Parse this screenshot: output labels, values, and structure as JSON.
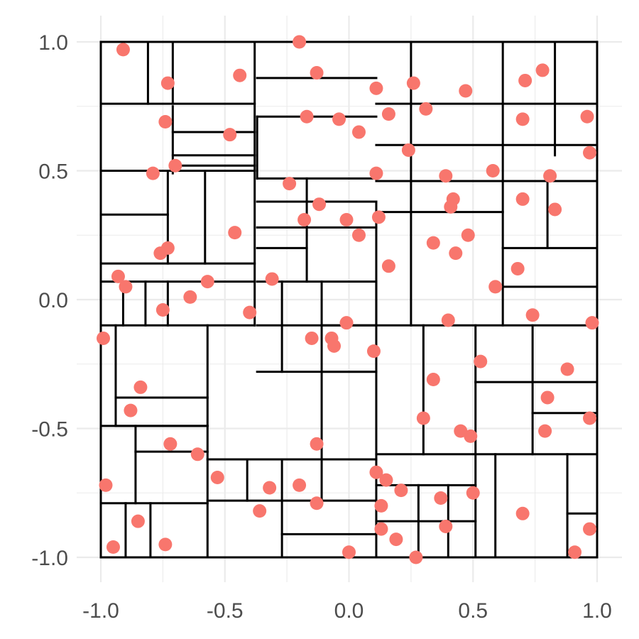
{
  "chart_data": {
    "type": "scatter",
    "title": "",
    "xlabel": "",
    "ylabel": "",
    "xlim": [
      -1.0,
      1.0
    ],
    "ylim": [
      -1.0,
      1.0
    ],
    "x_ticks": [
      "-1.0",
      "-0.5",
      "0.0",
      "0.5",
      "1.0"
    ],
    "y_ticks": [
      "-1.0",
      "-0.5",
      "0.0",
      "0.5",
      "1.0"
    ],
    "grid": true,
    "legend": "none",
    "point_color": "#F8766D",
    "line_color": "#000000",
    "points": [
      [
        -0.91,
        0.97
      ],
      [
        -0.2,
        1.0
      ],
      [
        -0.13,
        0.88
      ],
      [
        -0.73,
        0.84
      ],
      [
        -0.44,
        0.87
      ],
      [
        0.11,
        0.82
      ],
      [
        0.26,
        0.84
      ],
      [
        0.47,
        0.81
      ],
      [
        0.71,
        0.85
      ],
      [
        0.78,
        0.89
      ],
      [
        -0.74,
        0.69
      ],
      [
        -0.17,
        0.71
      ],
      [
        -0.04,
        0.7
      ],
      [
        0.16,
        0.72
      ],
      [
        0.31,
        0.74
      ],
      [
        0.7,
        0.7
      ],
      [
        0.96,
        0.71
      ],
      [
        -0.48,
        0.64
      ],
      [
        0.04,
        0.65
      ],
      [
        0.24,
        0.58
      ],
      [
        0.97,
        0.57
      ],
      [
        -0.7,
        0.52
      ],
      [
        -0.79,
        0.49
      ],
      [
        0.11,
        0.49
      ],
      [
        0.39,
        0.48
      ],
      [
        0.58,
        0.5
      ],
      [
        0.81,
        0.48
      ],
      [
        -0.24,
        0.45
      ],
      [
        0.7,
        0.39
      ],
      [
        0.42,
        0.39
      ],
      [
        -0.12,
        0.37
      ],
      [
        0.41,
        0.36
      ],
      [
        0.83,
        0.35
      ],
      [
        -0.18,
        0.31
      ],
      [
        -0.01,
        0.31
      ],
      [
        0.12,
        0.32
      ],
      [
        -0.46,
        0.26
      ],
      [
        0.04,
        0.25
      ],
      [
        0.48,
        0.25
      ],
      [
        0.34,
        0.22
      ],
      [
        -0.73,
        0.2
      ],
      [
        -0.76,
        0.18
      ],
      [
        0.43,
        0.18
      ],
      [
        0.16,
        0.13
      ],
      [
        0.68,
        0.12
      ],
      [
        -0.93,
        0.09
      ],
      [
        -0.9,
        0.05
      ],
      [
        -0.57,
        0.07
      ],
      [
        -0.31,
        0.08
      ],
      [
        -0.64,
        0.01
      ],
      [
        0.59,
        0.05
      ],
      [
        -0.75,
        -0.04
      ],
      [
        -0.4,
        -0.05
      ],
      [
        0.74,
        -0.06
      ],
      [
        -0.99,
        -0.15
      ],
      [
        -0.15,
        -0.15
      ],
      [
        -0.07,
        -0.15
      ],
      [
        -0.06,
        -0.18
      ],
      [
        -0.01,
        -0.09
      ],
      [
        0.4,
        -0.08
      ],
      [
        0.98,
        -0.09
      ],
      [
        0.1,
        -0.2
      ],
      [
        0.53,
        -0.24
      ],
      [
        0.88,
        -0.27
      ],
      [
        -0.84,
        -0.34
      ],
      [
        0.34,
        -0.31
      ],
      [
        0.8,
        -0.38
      ],
      [
        -0.88,
        -0.43
      ],
      [
        0.3,
        -0.46
      ],
      [
        0.97,
        -0.46
      ],
      [
        0.45,
        -0.51
      ],
      [
        0.49,
        -0.53
      ],
      [
        0.79,
        -0.51
      ],
      [
        -0.72,
        -0.56
      ],
      [
        -0.13,
        -0.56
      ],
      [
        -0.61,
        -0.6
      ],
      [
        -0.98,
        -0.72
      ],
      [
        -0.53,
        -0.69
      ],
      [
        0.11,
        -0.67
      ],
      [
        0.15,
        -0.7
      ],
      [
        -0.32,
        -0.73
      ],
      [
        -0.2,
        -0.72
      ],
      [
        0.21,
        -0.74
      ],
      [
        0.5,
        -0.75
      ],
      [
        0.37,
        -0.77
      ],
      [
        -0.13,
        -0.79
      ],
      [
        0.13,
        -0.8
      ],
      [
        -0.36,
        -0.82
      ],
      [
        0.7,
        -0.83
      ],
      [
        -0.85,
        -0.86
      ],
      [
        0.13,
        -0.89
      ],
      [
        0.39,
        -0.88
      ],
      [
        0.97,
        -0.89
      ],
      [
        -0.95,
        -0.96
      ],
      [
        -0.74,
        -0.95
      ],
      [
        0.19,
        -0.93
      ],
      [
        0.0,
        -0.98
      ],
      [
        0.27,
        -1.0
      ],
      [
        0.91,
        -0.98
      ]
    ],
    "segments": [
      [
        -1,
        -1,
        1,
        -1
      ],
      [
        1,
        -1,
        1,
        1
      ],
      [
        1,
        1,
        -1,
        1
      ],
      [
        -1,
        1,
        -1,
        -1
      ],
      [
        -0.81,
        1,
        -0.81,
        0.76
      ],
      [
        -0.71,
        1,
        -0.71,
        0.76
      ],
      [
        -1,
        0.76,
        -0.38,
        0.76
      ],
      [
        -0.38,
        1,
        -0.38,
        -0.1
      ],
      [
        -0.71,
        0.75,
        -0.71,
        0.49
      ],
      [
        -0.71,
        0.65,
        -0.38,
        0.65
      ],
      [
        -0.71,
        0.56,
        -0.38,
        0.56
      ],
      [
        -0.71,
        0.52,
        -0.38,
        0.52
      ],
      [
        -1,
        0.5,
        -0.38,
        0.5
      ],
      [
        -1,
        0.33,
        -0.73,
        0.33
      ],
      [
        -0.73,
        0.5,
        -0.73,
        0.14
      ],
      [
        -0.58,
        0.5,
        -0.58,
        0.14
      ],
      [
        -1,
        0.14,
        -0.38,
        0.14
      ],
      [
        -1,
        0.07,
        -0.38,
        0.07
      ],
      [
        -0.91,
        0.07,
        -0.91,
        -0.1
      ],
      [
        -0.82,
        0.07,
        -0.82,
        -0.1
      ],
      [
        -0.73,
        0.07,
        -0.73,
        -0.1
      ],
      [
        -1,
        -0.1,
        -0.38,
        -0.1
      ],
      [
        -0.94,
        -0.1,
        -0.94,
        -0.49
      ],
      [
        -0.94,
        -0.38,
        -0.57,
        -0.38
      ],
      [
        -0.94,
        -0.49,
        -0.57,
        -0.49
      ],
      [
        -0.57,
        -0.1,
        -0.57,
        -1
      ],
      [
        -1,
        -0.49,
        -0.57,
        -0.49
      ],
      [
        -0.86,
        -0.49,
        -0.86,
        -0.59
      ],
      [
        -0.86,
        -0.59,
        -0.57,
        -0.59
      ],
      [
        -0.86,
        -0.59,
        -0.86,
        -0.79
      ],
      [
        -1,
        -0.79,
        -0.57,
        -0.79
      ],
      [
        -0.9,
        -0.79,
        -0.9,
        -1
      ],
      [
        -0.8,
        -0.79,
        -0.8,
        -1
      ],
      [
        -0.37,
        1,
        0.11,
        1
      ],
      [
        -0.37,
        0.86,
        0.11,
        0.86
      ],
      [
        -0.37,
        0.71,
        0.11,
        0.71
      ],
      [
        -0.37,
        0.71,
        -0.37,
        0.47
      ],
      [
        -0.37,
        0.47,
        0.11,
        0.47
      ],
      [
        -0.37,
        0.38,
        0.11,
        0.38
      ],
      [
        -0.37,
        0.28,
        -0.17,
        0.28
      ],
      [
        -0.37,
        0.2,
        -0.17,
        0.2
      ],
      [
        -0.17,
        0.47,
        -0.17,
        0.07
      ],
      [
        -0.17,
        0.28,
        0.11,
        0.28
      ],
      [
        0.11,
        0.38,
        0.11,
        -0.1
      ],
      [
        -0.37,
        0.07,
        0.11,
        0.07
      ],
      [
        -0.37,
        -0.1,
        0.11,
        -0.1
      ],
      [
        -0.27,
        0.07,
        -0.27,
        -0.28
      ],
      [
        -0.37,
        -0.28,
        0.11,
        -0.28
      ],
      [
        -0.11,
        0.07,
        -0.11,
        -0.78
      ],
      [
        -0.11,
        -0.1,
        0.11,
        -0.1
      ],
      [
        0.11,
        0.07,
        0.11,
        -1
      ],
      [
        -0.11,
        -0.28,
        0.11,
        -0.28
      ],
      [
        -0.57,
        -0.62,
        0.11,
        -0.62
      ],
      [
        -0.41,
        -0.62,
        -0.41,
        -0.78
      ],
      [
        -0.57,
        -0.78,
        0.11,
        -0.78
      ],
      [
        -0.27,
        -0.62,
        -0.27,
        -1
      ],
      [
        -0.27,
        -0.91,
        0.11,
        -0.91
      ],
      [
        0.11,
        0.76,
        1,
        0.76
      ],
      [
        0.11,
        0.46,
        0.62,
        0.46
      ],
      [
        0.11,
        0.34,
        0.62,
        0.34
      ],
      [
        0.25,
        1,
        0.25,
        -0.1
      ],
      [
        0.62,
        1,
        0.62,
        -0.1
      ],
      [
        0.83,
        1,
        0.83,
        0.56
      ],
      [
        0.11,
        0.6,
        1,
        0.6
      ],
      [
        0.62,
        0.46,
        1,
        0.46
      ],
      [
        0.8,
        0.46,
        0.8,
        0.2
      ],
      [
        0.62,
        0.2,
        1,
        0.2
      ],
      [
        0.62,
        0.05,
        1,
        0.05
      ],
      [
        0.11,
        -0.1,
        1,
        -0.1
      ],
      [
        0.3,
        -0.1,
        0.3,
        -0.6
      ],
      [
        0.51,
        -0.1,
        0.51,
        -1
      ],
      [
        0.74,
        -0.1,
        0.74,
        -0.6
      ],
      [
        0.51,
        -0.32,
        1,
        -0.32
      ],
      [
        0.74,
        -0.44,
        1,
        -0.44
      ],
      [
        0.11,
        -0.6,
        1,
        -0.6
      ],
      [
        0.11,
        -0.72,
        0.51,
        -0.72
      ],
      [
        0.28,
        -0.72,
        0.28,
        -1
      ],
      [
        0.4,
        -0.72,
        0.4,
        -1
      ],
      [
        0.11,
        -0.86,
        0.51,
        -0.86
      ],
      [
        0.59,
        -0.6,
        0.59,
        -1
      ],
      [
        0.88,
        -0.6,
        0.88,
        -1
      ],
      [
        0.88,
        -0.83,
        1,
        -0.83
      ]
    ]
  }
}
